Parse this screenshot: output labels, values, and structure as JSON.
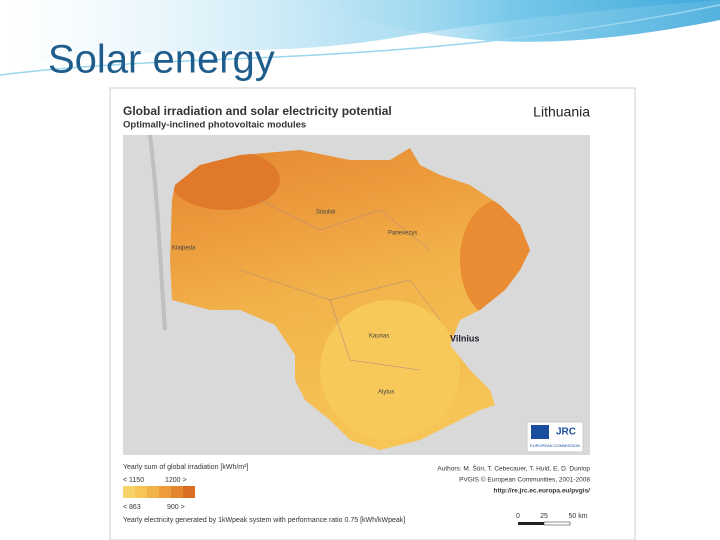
{
  "slide": {
    "title": "Solar energy"
  },
  "map": {
    "title": "Global irradiation and solar electricity potential",
    "subtitle": "Optimally-inclined photovoltaic modules",
    "country": "Lithuania",
    "cities": [
      "Siauliai",
      "Panevezys",
      "Klaipeda",
      "Kaunas",
      "Vilnius",
      "Alytus"
    ],
    "legend": {
      "irradiation_label": "Yearly sum of global irradiation [kWh/m²]",
      "irradiation_low": "< 1150",
      "irradiation_high": "1200 >",
      "electricity_low": "< 863",
      "electricity_high": "900 >",
      "electricity_label": "Yearly electricity generated by 1kWpeak system with performance ratio 0.75 [kWh/kWpeak]"
    },
    "credits": [
      "Authors: M. Šúri, T. Cebecauer, T. Huld, E. D. Dunlop",
      "PVGIS © European Communities, 2001-2008",
      "http://re.jrc.ec.europa.eu/pvgis/"
    ],
    "logo": {
      "name": "JRC",
      "org": "EUROPEAN COMMISSION"
    },
    "scale": [
      "0",
      "25",
      "50 km"
    ]
  }
}
